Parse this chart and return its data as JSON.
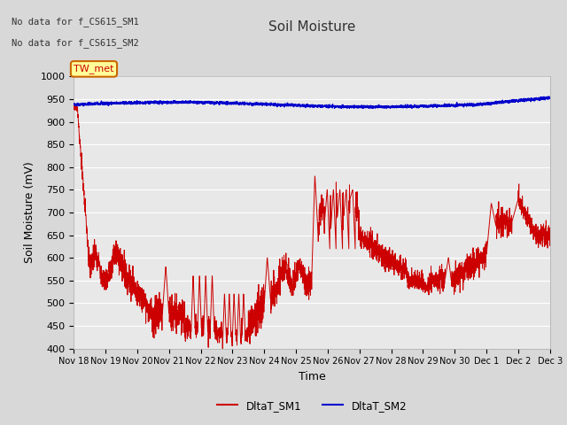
{
  "title": "Soil Moisture",
  "xlabel": "Time",
  "ylabel": "Soil Moisture (mV)",
  "ylim": [
    400,
    1000
  ],
  "yticks": [
    400,
    450,
    500,
    550,
    600,
    650,
    700,
    750,
    800,
    850,
    900,
    950,
    1000
  ],
  "annotation_lines": [
    "No data for f_CS615_SM1",
    "No data for f_CS615_SM2"
  ],
  "legend_labels": [
    "DltaT_SM1",
    "DltaT_SM2"
  ],
  "legend_colors": [
    "#cc0000",
    "#0000cc"
  ],
  "box_label": "TW_met",
  "box_facecolor": "#ffff99",
  "box_edgecolor": "#cc6600",
  "background_color": "#d8d8d8",
  "plot_bg_color": "#e8e8e8",
  "grid_color": "#ffffff",
  "title_fontsize": 11,
  "axis_fontsize": 9,
  "tick_fontsize": 8
}
